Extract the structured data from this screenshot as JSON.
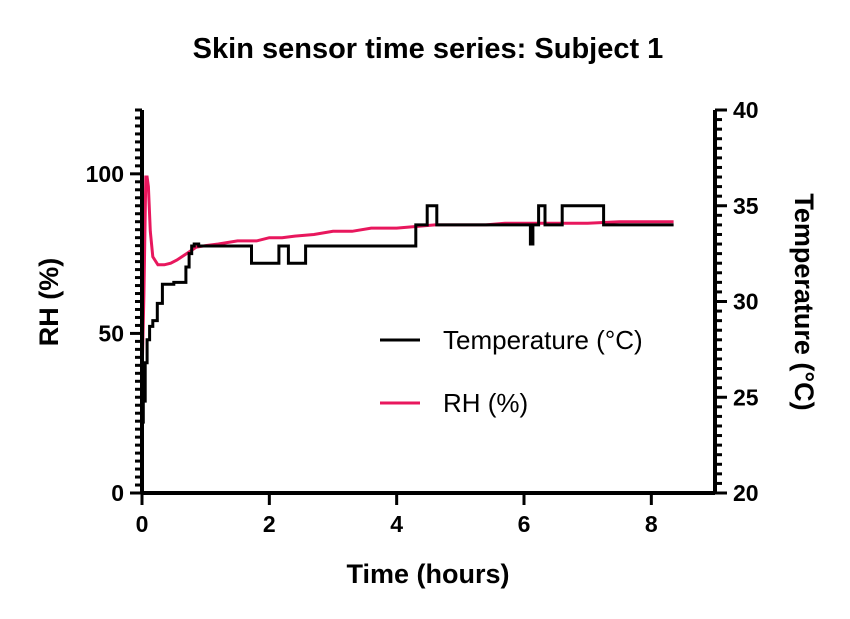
{
  "chart_data": {
    "type": "line",
    "title": "Skin sensor time series: Subject 1",
    "xlabel": "Time (hours)",
    "ylabel_left": "RH (%)",
    "ylabel_right": "Temperature (°C)",
    "xlim": [
      0,
      9
    ],
    "ylim_left": [
      0,
      120
    ],
    "ylim_right": [
      20,
      40
    ],
    "x_ticks": [
      0,
      2,
      4,
      6,
      8
    ],
    "y_left_ticks": [
      0,
      50,
      100
    ],
    "y_right_ticks": [
      20,
      25,
      30,
      35,
      40
    ],
    "grid": false,
    "legend_position": "center-right",
    "series": [
      {
        "name": "Temperature (°C)",
        "axis": "right",
        "color": "#000000",
        "x": [
          0.0,
          0.02,
          0.02,
          0.05,
          0.05,
          0.08,
          0.08,
          0.12,
          0.12,
          0.17,
          0.17,
          0.24,
          0.24,
          0.32,
          0.32,
          0.5,
          0.5,
          0.69,
          0.69,
          0.74,
          0.74,
          0.78,
          0.78,
          0.82,
          0.82,
          0.89,
          0.89,
          1.72,
          1.72,
          2.15,
          2.15,
          2.3,
          2.3,
          2.33,
          2.33,
          2.57,
          2.57,
          4.3,
          4.3,
          4.48,
          4.48,
          4.63,
          4.63,
          6.1,
          6.1,
          6.14,
          6.14,
          6.23,
          6.23,
          6.33,
          6.33,
          6.6,
          6.6,
          7.25,
          7.25,
          8.35
        ],
        "values": [
          23.7,
          23.7,
          24.8,
          24.8,
          26.8,
          26.8,
          28.0,
          28.0,
          28.7,
          28.7,
          29.0,
          29.0,
          29.9,
          29.9,
          30.9,
          30.9,
          31.0,
          31.0,
          31.8,
          31.8,
          32.5,
          32.5,
          32.9,
          32.9,
          33.0,
          33.0,
          32.9,
          32.9,
          32.0,
          32.0,
          32.9,
          32.9,
          32.0,
          32.0,
          32.0,
          32.0,
          32.9,
          32.9,
          34.0,
          34.0,
          35.0,
          35.0,
          34.0,
          34.0,
          33.0,
          33.0,
          34.0,
          34.0,
          35.0,
          35.0,
          34.0,
          34.0,
          35.0,
          35.0,
          34.0,
          34.0
        ]
      },
      {
        "name": "RH (%)",
        "axis": "left",
        "color": "#e8175d",
        "x": [
          0.0,
          0.03,
          0.06,
          0.08,
          0.1,
          0.13,
          0.17,
          0.25,
          0.35,
          0.45,
          0.55,
          0.7,
          0.85,
          1.0,
          1.2,
          1.5,
          1.8,
          2.0,
          2.2,
          2.4,
          2.7,
          3.0,
          3.3,
          3.6,
          4.0,
          4.3,
          4.6,
          5.0,
          5.4,
          5.7,
          6.0,
          6.4,
          7.0,
          7.5,
          8.35
        ],
        "values": [
          36,
          62,
          99,
          99,
          96,
          82,
          74,
          71.5,
          71.5,
          72,
          73,
          75,
          77,
          77.5,
          78,
          79,
          79,
          80,
          80,
          80.5,
          81,
          82,
          82,
          83,
          83,
          83.5,
          84,
          84,
          84,
          84.5,
          84.5,
          84.5,
          84.5,
          85,
          85
        ]
      }
    ]
  }
}
